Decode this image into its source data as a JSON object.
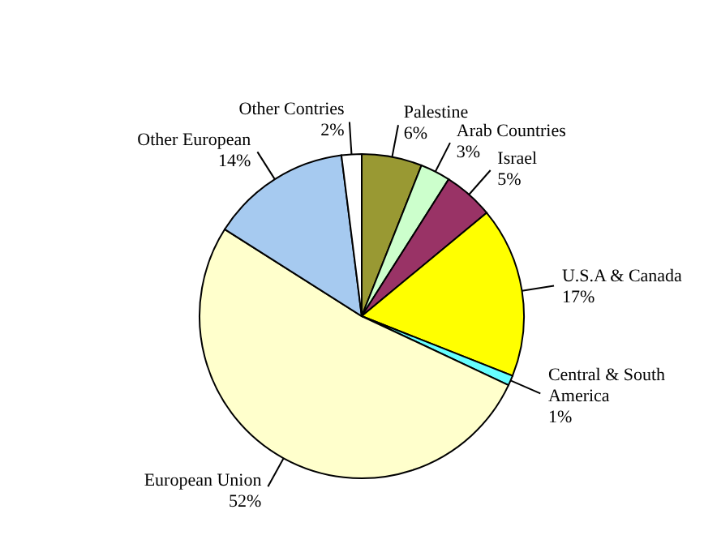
{
  "chart_data": {
    "type": "pie",
    "categories": [
      "Palestine",
      "Arab Countries",
      "Israel",
      "U.S.A & Canada",
      "Central & South America",
      "European Union",
      "Other European",
      "Other Contries"
    ],
    "values": [
      6,
      3,
      5,
      17,
      1,
      52,
      14,
      2
    ],
    "value_labels": [
      "6%",
      "3%",
      "5%",
      "17%",
      "1%",
      "52%",
      "14%",
      "2%"
    ],
    "colors": [
      "#999933",
      "#ccffcc",
      "#993366",
      "#ffff00",
      "#66ffff",
      "#ffffcc",
      "#a6caf0",
      "#ffffff"
    ],
    "legend": false
  }
}
